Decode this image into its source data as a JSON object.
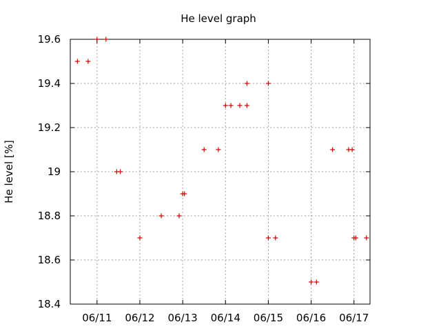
{
  "chart_data": {
    "type": "scatter",
    "title": "He level graph",
    "xlabel": "",
    "ylabel": "He level [%]",
    "ylim": [
      18.4,
      19.6
    ],
    "xlim": [
      "06/10 09:00",
      "06/17 09:00"
    ],
    "yticks": [
      "18.4",
      "18.6",
      "18.8",
      "19",
      "19.2",
      "19.4",
      "19.6"
    ],
    "yticks_values": [
      18.4,
      18.6,
      18.8,
      19.0,
      19.2,
      19.4,
      19.6
    ],
    "xticks": [
      "06/11",
      "06/12",
      "06/13",
      "06/14",
      "06/15",
      "06/16",
      "06/17"
    ],
    "xticks_values": [
      "06/11 00:00",
      "06/12 00:00",
      "06/13 00:00",
      "06/14 00:00",
      "06/15 00:00",
      "06/16 00:00",
      "06/17 00:00"
    ],
    "grid": true,
    "legend": "none",
    "marker": "plus",
    "marker_color": "#cc0000",
    "series": [
      {
        "points": [
          {
            "x": "06/10 13:00",
            "y": 19.5
          },
          {
            "x": "06/10 19:00",
            "y": 19.5
          },
          {
            "x": "06/11 00:00",
            "y": 19.6
          },
          {
            "x": "06/11 05:00",
            "y": 19.6
          },
          {
            "x": "06/11 11:00",
            "y": 19.0
          },
          {
            "x": "06/11 13:00",
            "y": 19.0
          },
          {
            "x": "06/12 00:00",
            "y": 18.7
          },
          {
            "x": "06/12 12:00",
            "y": 18.8
          },
          {
            "x": "06/12 22:00",
            "y": 18.8
          },
          {
            "x": "06/13 00:00",
            "y": 18.9
          },
          {
            "x": "06/13 01:00",
            "y": 18.9
          },
          {
            "x": "06/13 12:00",
            "y": 19.1
          },
          {
            "x": "06/13 20:00",
            "y": 19.1
          },
          {
            "x": "06/14 00:00",
            "y": 19.3
          },
          {
            "x": "06/14 03:00",
            "y": 19.3
          },
          {
            "x": "06/14 08:00",
            "y": 19.3
          },
          {
            "x": "06/14 12:00",
            "y": 19.3
          },
          {
            "x": "06/14 12:00",
            "y": 19.4
          },
          {
            "x": "06/15 00:00",
            "y": 19.4
          },
          {
            "x": "06/15 00:00",
            "y": 18.7
          },
          {
            "x": "06/15 04:00",
            "y": 18.7
          },
          {
            "x": "06/16 00:00",
            "y": 18.5
          },
          {
            "x": "06/16 03:00",
            "y": 18.5
          },
          {
            "x": "06/16 12:00",
            "y": 19.1
          },
          {
            "x": "06/16 21:00",
            "y": 19.1
          },
          {
            "x": "06/16 23:00",
            "y": 19.1
          },
          {
            "x": "06/17 00:00",
            "y": 18.7
          },
          {
            "x": "06/17 01:00",
            "y": 18.7
          },
          {
            "x": "06/17 07:00",
            "y": 18.7
          }
        ]
      }
    ]
  }
}
